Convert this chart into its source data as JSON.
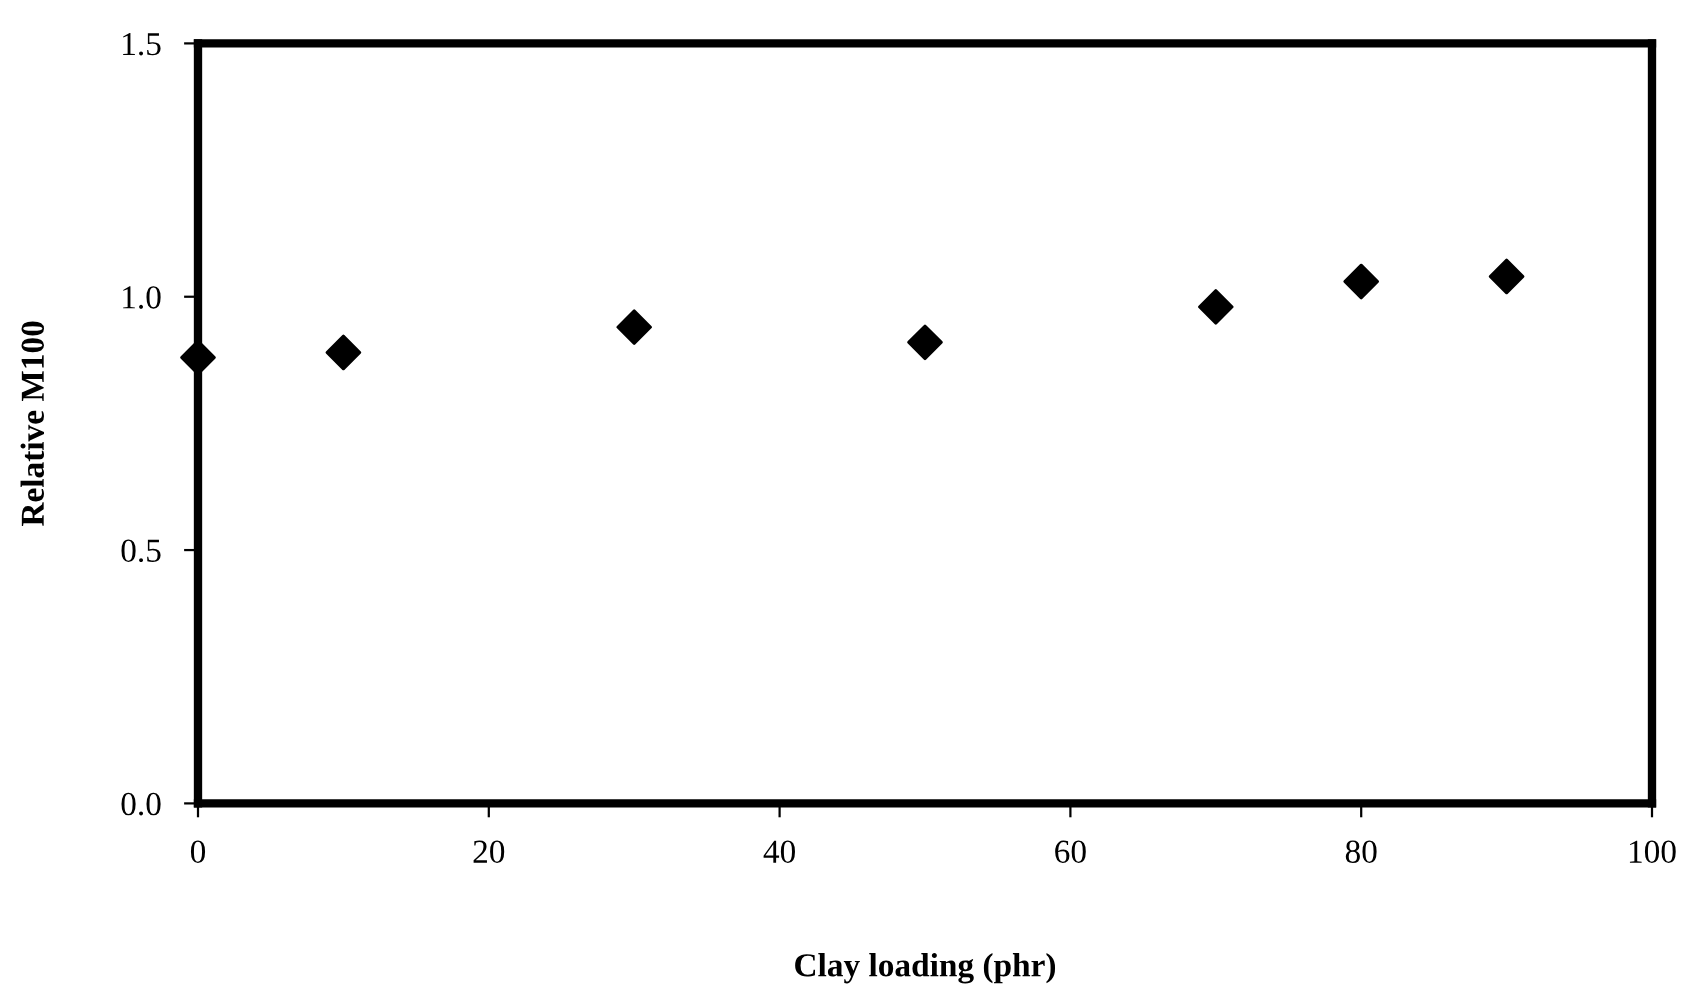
{
  "chart_data": {
    "type": "scatter",
    "xlabel": "Clay loading (phr)",
    "ylabel": "Relative M100",
    "x": [
      0,
      10,
      30,
      50,
      70,
      80,
      90
    ],
    "series": [
      {
        "color": "#000000",
        "values": [
          0.88,
          0.89,
          0.94,
          0.91,
          0.98,
          1.03,
          1.04
        ]
      }
    ],
    "marker": "diamond",
    "xlim": [
      0,
      100
    ],
    "xticks": [
      0,
      20,
      40,
      60,
      80,
      100
    ],
    "ylim": [
      0.0,
      1.5
    ],
    "yticks": [
      {
        "value": 0.0,
        "label": "0.0"
      },
      {
        "value": 0.5,
        "label": "0.5"
      },
      {
        "value": 1.0,
        "label": "1.0"
      },
      {
        "value": 1.5,
        "label": "1.5"
      }
    ],
    "grid": false,
    "legend": false
  }
}
